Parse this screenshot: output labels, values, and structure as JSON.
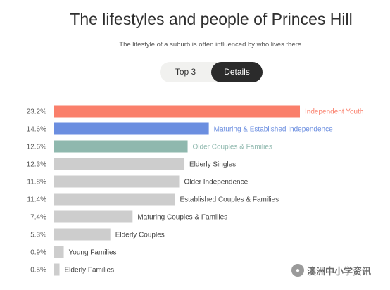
{
  "header": {
    "title": "The lifestyles and people of Princes Hill",
    "subtitle": "The lifestyle of a suburb is often influenced by who lives there."
  },
  "toggle": {
    "options": [
      "Top 3",
      "Details"
    ],
    "selected": "Details"
  },
  "colors": {
    "highlight_1": "#fa7f6b",
    "highlight_2": "#6b8ee0",
    "highlight_3": "#8fb8ae",
    "default_bar": "#cdcdcd"
  },
  "chart_data": {
    "type": "bar",
    "orientation": "horizontal",
    "categories": [
      "Independent Youth",
      "Maturing & Established Independence",
      "Older Couples & Families",
      "Elderly Singles",
      "Older Independence",
      "Established Couples & Families",
      "Maturing Couples & Families",
      "Elderly Couples",
      "Young Families",
      "Elderly Families"
    ],
    "values": [
      23.2,
      14.6,
      12.6,
      12.3,
      11.8,
      11.4,
      7.4,
      5.3,
      0.9,
      0.5
    ],
    "value_labels": [
      "23.2%",
      "14.6%",
      "12.6%",
      "12.3%",
      "11.8%",
      "11.4%",
      "7.4%",
      "5.3%",
      "0.9%",
      "0.5%"
    ],
    "highlighted_count": 3,
    "unit": "%"
  },
  "watermark": {
    "text": "澳洲中小学资讯",
    "icon": "wechat-icon"
  }
}
